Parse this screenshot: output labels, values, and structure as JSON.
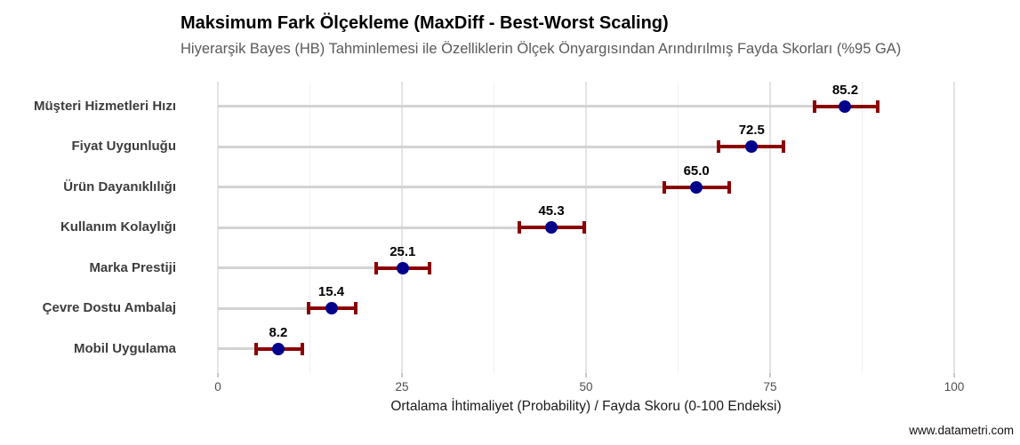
{
  "chart_data": {
    "type": "scatter",
    "variant": "horizontal-dot-plot-with-error-bars",
    "title": "Maksimum Fark Ölçekleme (MaxDiff - Best-Worst Scaling)",
    "subtitle": "Hiyerarşik Bayes (HB) Tahminlemesi ile Özelliklerin Ölçek Önyargısından Arındırılmış Fayda Skorları (%95 GA)",
    "xlabel": "Ortalama İhtimaliyet (Probability) / Fayda Skoru (0-100 Endeksi)",
    "ylabel": "",
    "categories": [
      "Müşteri Hizmetleri Hızı",
      "Fiyat Uygunluğu",
      "Ürün Dayanıklılığı",
      "Kullanım Kolaylığı",
      "Marka Prestiji",
      "Çevre Dostu Ambalaj",
      "Mobil Uygulama"
    ],
    "series": [
      {
        "name": "Fayda Skoru (HB)",
        "values": [
          85.2,
          72.5,
          65.0,
          45.3,
          25.1,
          15.4,
          8.2
        ],
        "value_labels": [
          "85.2",
          "72.5",
          "65.0",
          "45.3",
          "25.1",
          "15.4",
          "8.2"
        ],
        "ci_low": [
          81.0,
          68.0,
          60.6,
          41.0,
          21.5,
          12.3,
          5.2
        ],
        "ci_high": [
          89.6,
          76.8,
          69.4,
          49.7,
          28.7,
          18.7,
          11.5
        ]
      }
    ],
    "xlim": [
      0,
      100
    ],
    "x_major_ticks": [
      0,
      25,
      50,
      75,
      100
    ],
    "x_major_tick_labels": [
      "0",
      "25",
      "50",
      "75",
      "100"
    ],
    "x_minor_gridlines": [
      12.5,
      37.5,
      62.5,
      87.5
    ],
    "grid": "vertical-only",
    "legend": "none",
    "colors": {
      "point": "#00008B",
      "errorbar": "#8B0000",
      "stem": "#D3D3D3",
      "gridline_major": "#E4E4E4",
      "gridline_minor": "#F0F0F0",
      "subtitle_text": "#5A5A5A",
      "axis_text": "#4D4D4D"
    }
  },
  "footer": {
    "watermark": "www.datametri.com"
  }
}
